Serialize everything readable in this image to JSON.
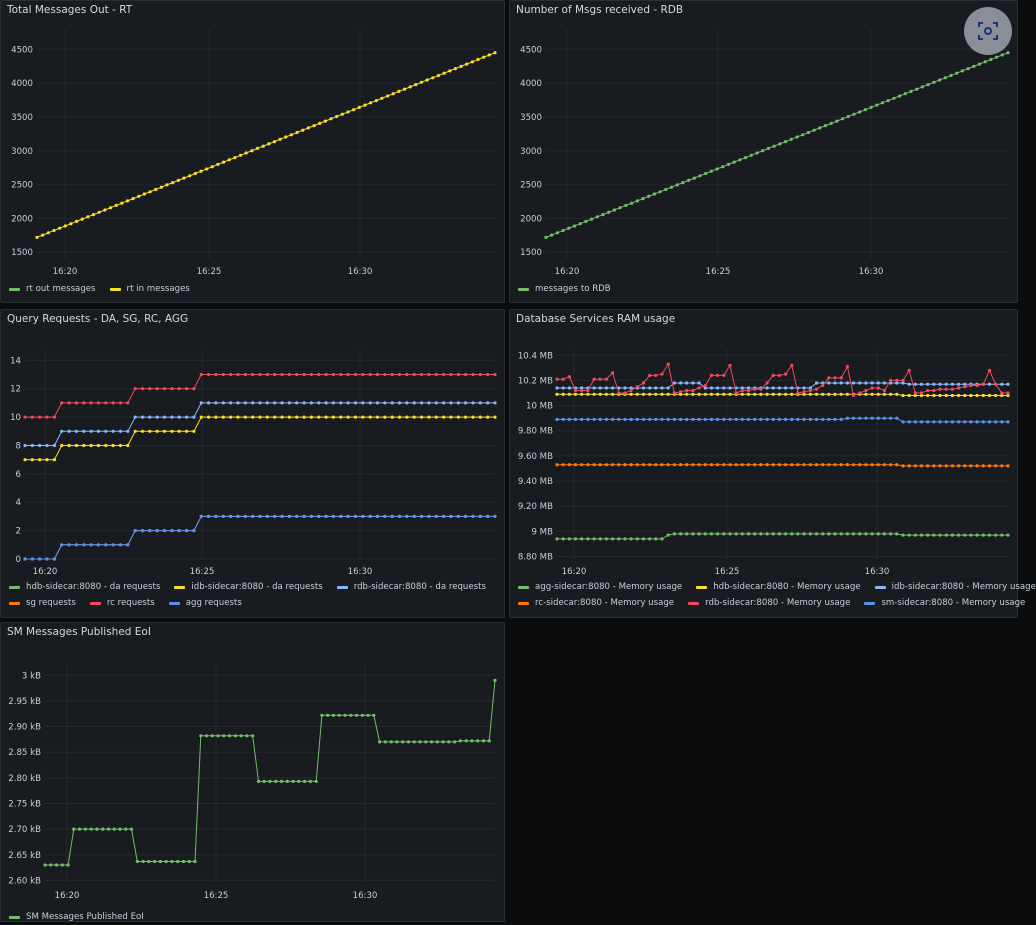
{
  "panels": {
    "p1": {
      "title": "Total Messages Out - RT",
      "legend": [
        {
          "label": "rt out messages",
          "color": "#73bf69"
        },
        {
          "label": "rt in messages",
          "color": "#fade2a"
        }
      ]
    },
    "p2": {
      "title": "Number of Msgs received - RDB",
      "legend": [
        {
          "label": "messages to RDB",
          "color": "#73bf69"
        }
      ]
    },
    "p3": {
      "title": "Query Requests - DA, SG, RC, AGG",
      "legend": [
        {
          "label": "hdb-sidecar:8080 - da requests",
          "color": "#73bf69"
        },
        {
          "label": "idb-sidecar:8080 - da requests",
          "color": "#fade2a"
        },
        {
          "label": "rdb-sidecar:8080 - da requests",
          "color": "#8ab8ff"
        },
        {
          "label": "sg requests",
          "color": "#ff780a"
        },
        {
          "label": "rc requests",
          "color": "#f2495c"
        },
        {
          "label": "agg requests",
          "color": "#5794f2"
        }
      ]
    },
    "p4": {
      "title": "Database Services RAM usage",
      "legend": [
        {
          "label": "agg-sidecar:8080 - Memory usage",
          "color": "#73bf69"
        },
        {
          "label": "hdb-sidecar:8080 - Memory usage",
          "color": "#fade2a"
        },
        {
          "label": "idb-sidecar:8080 - Memory usage",
          "color": "#8ab8ff"
        },
        {
          "label": "rc-sidecar:8080 - Memory usage",
          "color": "#ff780a"
        },
        {
          "label": "rdb-sidecar:8080 - Memory usage",
          "color": "#f2495c"
        },
        {
          "label": "sm-sidecar:8080 - Memory usage",
          "color": "#5794f2"
        }
      ]
    },
    "p5": {
      "title": "SM Messages Published EoI",
      "legend": [
        {
          "label": "SM Messages Published EoI",
          "color": "#73bf69"
        }
      ]
    }
  },
  "chart_data": [
    {
      "type": "line",
      "title": "Total Messages Out - RT",
      "x_ticks": [
        "16:20",
        "16:25",
        "16:30"
      ],
      "y_ticks": [
        "1500",
        "2000",
        "2500",
        "3000",
        "3500",
        "4000",
        "4500"
      ],
      "ylim": [
        1400,
        4800
      ],
      "grid": true,
      "legend": "bottom",
      "series": [
        {
          "name": "rt in messages",
          "color": "#fade2a",
          "start": 1720,
          "end": 4450,
          "n": 82
        }
      ]
    },
    {
      "type": "line",
      "title": "Number of Msgs received - RDB",
      "x_ticks": [
        "16:20",
        "16:25",
        "16:30"
      ],
      "y_ticks": [
        "1500",
        "2000",
        "2500",
        "3000",
        "3500",
        "4000",
        "4500"
      ],
      "ylim": [
        1400,
        4800
      ],
      "grid": true,
      "legend": "bottom",
      "series": [
        {
          "name": "messages to RDB",
          "color": "#73bf69",
          "start": 1720,
          "end": 4450,
          "n": 82
        }
      ]
    },
    {
      "type": "line",
      "title": "Query Requests - DA, SG, RC, AGG",
      "x_ticks": [
        "16:20",
        "16:25",
        "16:30"
      ],
      "y_ticks": [
        "0",
        "2",
        "4",
        "6",
        "8",
        "10",
        "12",
        "14"
      ],
      "ylim": [
        0,
        14.8
      ],
      "grid": true,
      "legend": "bottom",
      "series": [
        {
          "name": "rc requests",
          "color": "#f2495c",
          "steps": [
            [
              0,
              10
            ],
            [
              5,
              11
            ],
            [
              15,
              12
            ],
            [
              24,
              13
            ]
          ],
          "n": 65
        },
        {
          "name": "rdb-sidecar:8080 - da requests",
          "color": "#8ab8ff",
          "steps": [
            [
              0,
              8
            ],
            [
              5,
              9
            ],
            [
              15,
              10
            ],
            [
              24,
              11
            ]
          ],
          "n": 65
        },
        {
          "name": "idb-sidecar:8080 - da requests",
          "color": "#fade2a",
          "steps": [
            [
              0,
              7
            ],
            [
              5,
              8
            ],
            [
              15,
              9
            ],
            [
              24,
              10
            ]
          ],
          "n": 65
        },
        {
          "name": "sg requests",
          "color": "#ff780a",
          "steps": [
            [
              0,
              0
            ],
            [
              5,
              1
            ],
            [
              15,
              2
            ],
            [
              24,
              3
            ]
          ],
          "n": 65
        },
        {
          "name": "agg requests",
          "color": "#5794f2",
          "steps": [
            [
              0,
              0
            ],
            [
              5,
              1
            ],
            [
              15,
              2
            ],
            [
              24,
              3
            ]
          ],
          "n": 65
        }
      ]
    },
    {
      "type": "line",
      "title": "Database Services RAM usage",
      "x_ticks": [
        "16:20",
        "16:25",
        "16:30"
      ],
      "y_ticks": [
        "8.80 MB",
        "9 MB",
        "9.20 MB",
        "9.40 MB",
        "9.60 MB",
        "9.80 MB",
        "10 MB",
        "10.2 MB",
        "10.4 MB"
      ],
      "ylim": [
        8.78,
        10.45
      ],
      "grid": true,
      "legend": "bottom",
      "series": [
        {
          "name": "agg-sidecar:8080 - Memory usage",
          "color": "#73bf69",
          "steps": [
            [
              0,
              8.94
            ],
            [
              18,
              8.97
            ],
            [
              19,
              8.98
            ],
            [
              56,
              8.97
            ]
          ],
          "n": 74
        },
        {
          "name": "rc-sidecar:8080 - Memory usage",
          "color": "#ff780a",
          "steps": [
            [
              0,
              9.53
            ],
            [
              56,
              9.52
            ]
          ],
          "n": 74
        },
        {
          "name": "sm-sidecar:8080 - Memory usage",
          "color": "#5794f2",
          "steps": [
            [
              0,
              9.89
            ],
            [
              47,
              9.9
            ],
            [
              56,
              9.87
            ]
          ],
          "n": 74
        },
        {
          "name": "hdb-sidecar:8080 - Memory usage",
          "color": "#fade2a",
          "steps": [
            [
              0,
              10.09
            ],
            [
              56,
              10.08
            ]
          ],
          "n": 74
        },
        {
          "name": "idb-sidecar:8080 - Memory usage",
          "color": "#8ab8ff",
          "steps": [
            [
              0,
              10.14
            ],
            [
              19,
              10.18
            ],
            [
              24,
              10.14
            ],
            [
              42,
              10.18
            ],
            [
              57,
              10.17
            ]
          ],
          "n": 74
        },
        {
          "name": "rdb-sidecar:8080 - Memory usage",
          "color": "#f2495c",
          "values": [
            10.21,
            10.21,
            10.23,
            10.12,
            10.12,
            10.12,
            10.21,
            10.21,
            10.21,
            10.26,
            10.1,
            10.1,
            10.12,
            10.15,
            10.18,
            10.24,
            10.24,
            10.25,
            10.33,
            10.1,
            10.11,
            10.12,
            10.12,
            10.14,
            10.16,
            10.24,
            10.24,
            10.24,
            10.32,
            10.1,
            10.12,
            10.12,
            10.13,
            10.13,
            10.18,
            10.24,
            10.24,
            10.25,
            10.32,
            10.1,
            10.11,
            10.12,
            10.13,
            10.16,
            10.22,
            10.22,
            10.22,
            10.31,
            10.08,
            10.1,
            10.12,
            10.14,
            10.14,
            10.12,
            10.2,
            10.2,
            10.2,
            10.28,
            10.1,
            10.1,
            10.12,
            10.12,
            10.13,
            10.13,
            10.13,
            10.14,
            10.15,
            10.16,
            10.16,
            10.17,
            10.28,
            10.17,
            10.1,
            10.1
          ]
        }
      ]
    },
    {
      "type": "line",
      "title": "SM Messages Published EoI",
      "x_ticks": [
        "16:20",
        "16:25",
        "16:30"
      ],
      "y_ticks": [
        "2.60 kB",
        "2.65 kB",
        "2.70 kB",
        "2.75 kB",
        "2.80 kB",
        "2.85 kB",
        "2.90 kB",
        "2.95 kB",
        "3 kB"
      ],
      "ylim": [
        2.595,
        3.02
      ],
      "grid": true,
      "legend": "bottom",
      "series": [
        {
          "name": "SM Messages Published EoI",
          "color": "#73bf69",
          "steps": [
            [
              0,
              2.63
            ],
            [
              5,
              2.7
            ],
            [
              16,
              2.637
            ],
            [
              27,
              2.882
            ],
            [
              37,
              2.793
            ],
            [
              48,
              2.922
            ],
            [
              58,
              2.87
            ],
            [
              72,
              2.872
            ],
            [
              78,
              2.99
            ]
          ],
          "n": 79
        }
      ]
    }
  ]
}
